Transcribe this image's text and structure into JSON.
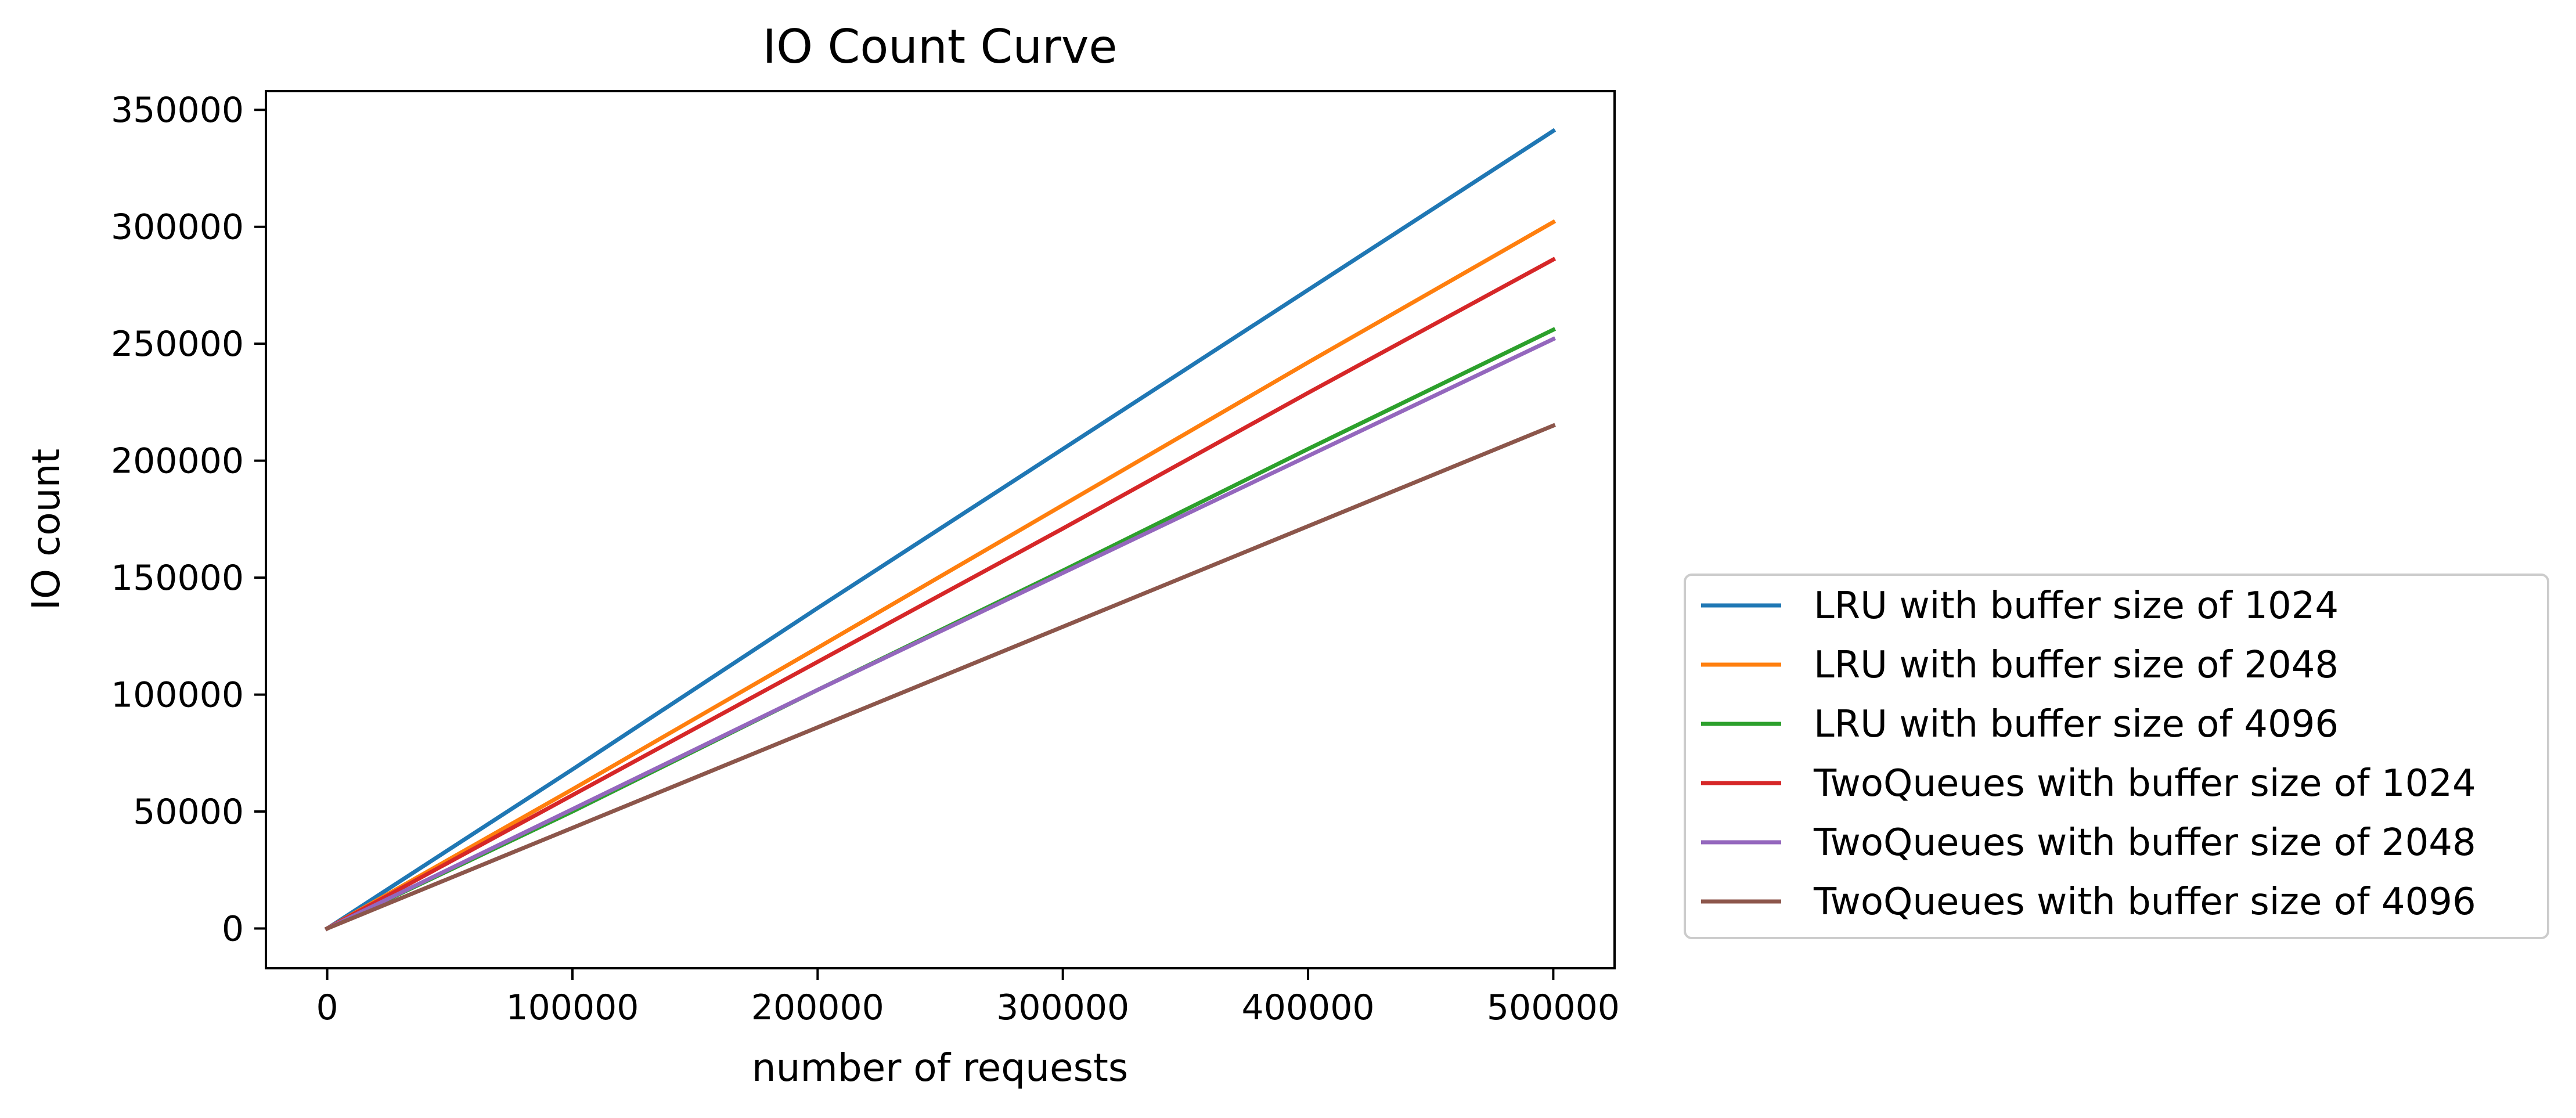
{
  "chart_data": {
    "type": "line",
    "title": "IO Count Curve",
    "xlabel": "number of requests",
    "ylabel": "IO count",
    "xlim": [
      -25000,
      525000
    ],
    "ylim": [
      -17000,
      358000
    ],
    "xticks": [
      0,
      100000,
      200000,
      300000,
      400000,
      500000
    ],
    "yticks": [
      0,
      50000,
      100000,
      150000,
      200000,
      250000,
      300000,
      350000
    ],
    "xtick_labels": [
      "0",
      "100000",
      "200000",
      "300000",
      "400000",
      "500000"
    ],
    "ytick_labels": [
      "0",
      "50000",
      "100000",
      "150000",
      "200000",
      "250000",
      "300000",
      "350000"
    ],
    "grid": false,
    "legend_position": "outside-right-bottom",
    "x": [
      0,
      100000,
      200000,
      300000,
      400000,
      500000
    ],
    "series": [
      {
        "name": "LRU with buffer size of 1024",
        "color": "#1f77b4",
        "values": [
          0,
          68000,
          137000,
          205000,
          273000,
          341000
        ]
      },
      {
        "name": "LRU with buffer size of 2048",
        "color": "#ff7f0e",
        "values": [
          0,
          59500,
          120000,
          181000,
          242000,
          302000
        ]
      },
      {
        "name": "LRU with buffer size of 4096",
        "color": "#2ca02c",
        "values": [
          0,
          50000,
          102000,
          153000,
          205000,
          256000
        ]
      },
      {
        "name": "TwoQueues with buffer size of 1024",
        "color": "#d62728",
        "values": [
          0,
          57000,
          114000,
          171000,
          229000,
          286000
        ]
      },
      {
        "name": "TwoQueues with buffer size of 2048",
        "color": "#9467bd",
        "values": [
          0,
          51000,
          102000,
          152000,
          202000,
          252000
        ]
      },
      {
        "name": "TwoQueues with buffer size of 4096",
        "color": "#8c564b",
        "values": [
          0,
          43000,
          86000,
          129000,
          172000,
          215000
        ]
      }
    ]
  }
}
